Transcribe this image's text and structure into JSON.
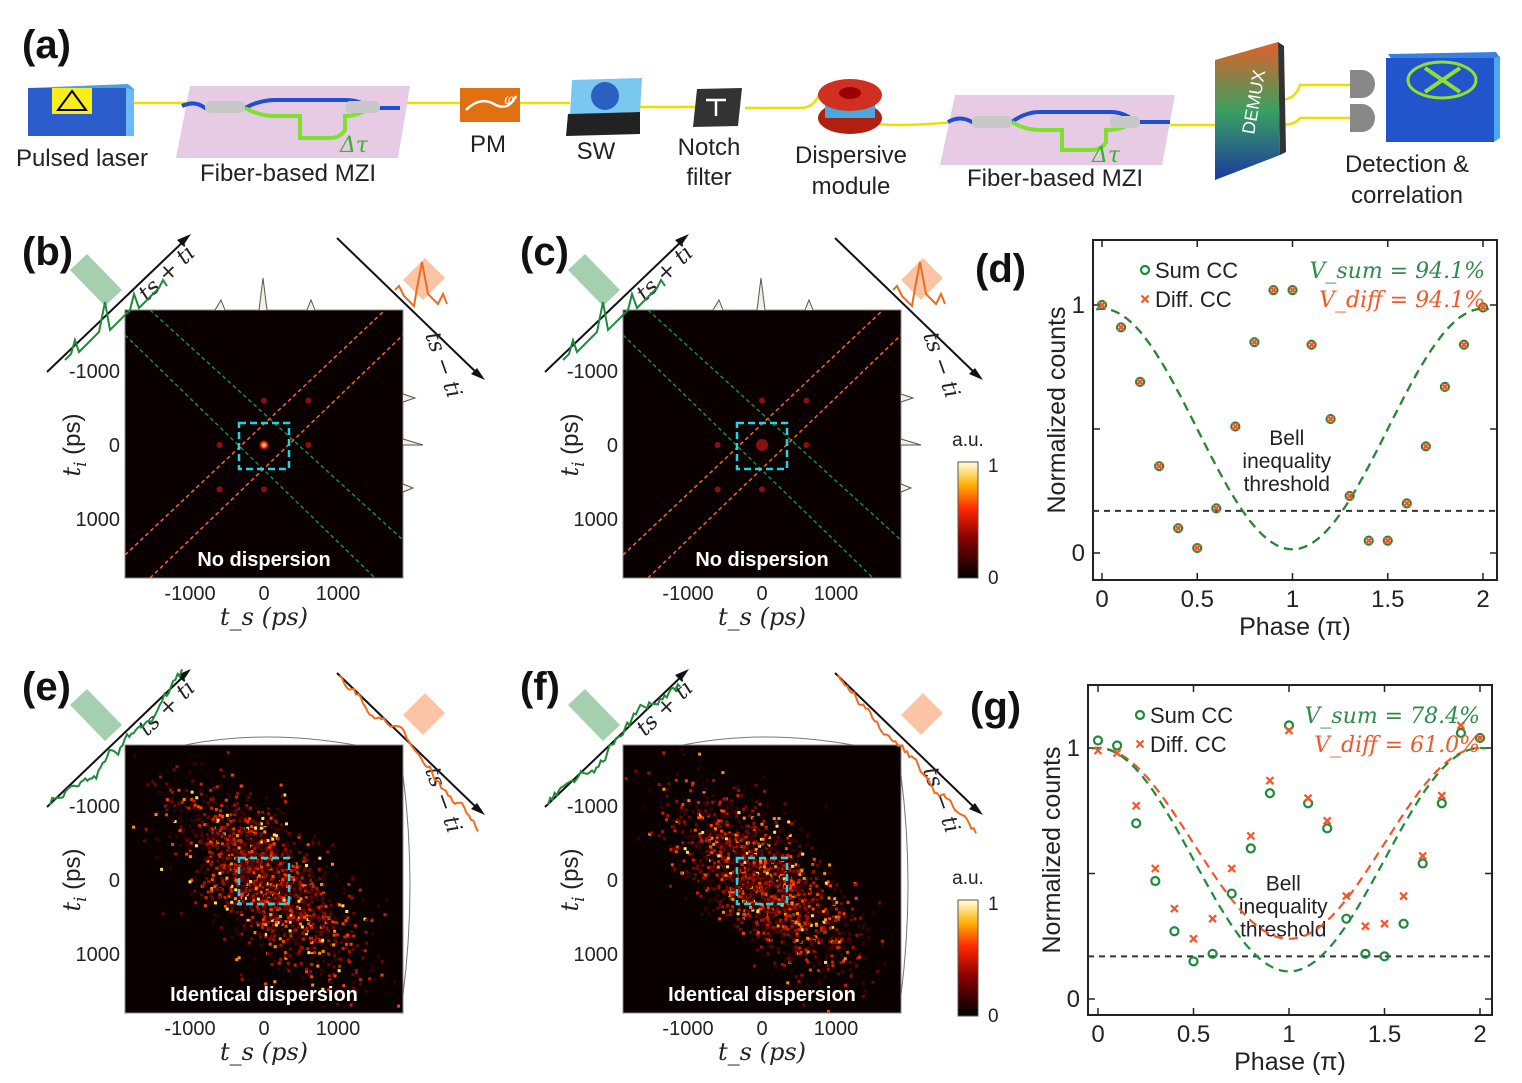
{
  "panel_labels": {
    "a": "(a)",
    "b": "(b)",
    "c": "(c)",
    "d": "(d)",
    "e": "(e)",
    "f": "(f)",
    "g": "(g)"
  },
  "schematic": {
    "pulsed_laser": "Pulsed laser",
    "mzi1": "Fiber-based MZI",
    "mzi1_delay": "Δτ",
    "pm": "PM",
    "pm_symbol": "φ",
    "sw": "SW",
    "notch_line1": "Notch",
    "notch_line2": "filter",
    "dispersive_line1": "Dispersive",
    "dispersive_line2": "module",
    "mzi2": "Fiber-based MZI",
    "mzi2_delay": "Δτ",
    "demux": "DEMUX",
    "detection_line1": "Detection &",
    "detection_line2": "correlation"
  },
  "heatmaps": {
    "xlabel": "t_s (ps)",
    "xlabel_sym": "t",
    "xlabel_sub": "s",
    "xlabel_unit": " (ps)",
    "ylabel_sym": "t",
    "ylabel_sub": "i",
    "ylabel_unit": " (ps)",
    "ticks": [
      "-1000",
      "0",
      "1000"
    ],
    "sum_axis": "ts + ti",
    "diff_axis": "ts − ti",
    "b_caption": "No dispersion",
    "c_caption": "No dispersion",
    "e_caption": "Identical dispersion",
    "f_caption": "Identical dispersion",
    "colorbar_title": "a.u.",
    "colorbar_max": "1",
    "colorbar_min": "0",
    "colors": {
      "sum": "#1e8a3a",
      "diff": "#f26b1d",
      "box": "#22d3e6"
    }
  },
  "chart_data": [
    {
      "type": "scatter",
      "panel": "(d)",
      "xlabel": "Phase (π)",
      "ylabel": "Normalized counts",
      "xlim": [
        -0.05,
        2.05
      ],
      "ylim": [
        -0.1,
        1.25
      ],
      "xticks": [
        "0",
        "0.5",
        "1",
        "1.5",
        "2"
      ],
      "yticks": [
        "0",
        "1"
      ],
      "legend": "top-left",
      "threshold": {
        "label_lines": [
          "Bell",
          "inequality",
          "threshold"
        ],
        "value": 0.17
      },
      "annotations": [
        {
          "text": "V_sum = 94.1%",
          "sym": "V",
          "sub": "sum",
          "val": " = 94.1%",
          "color": "#2e8b4a"
        },
        {
          "text": "V_diff = 94.1%",
          "sym": "V",
          "sub": "diff",
          "val": " = 94.1%",
          "color": "#f0582a"
        }
      ],
      "x": [
        0,
        0.1,
        0.2,
        0.3,
        0.4,
        0.5,
        0.6,
        0.7,
        0.8,
        0.9,
        1.0,
        1.1,
        1.2,
        1.3,
        1.4,
        1.5,
        1.6,
        1.7,
        1.8,
        1.9,
        2.0
      ],
      "series": [
        {
          "name": "Sum CC",
          "marker": "circle",
          "color": "#1e8a3a",
          "values": [
            1.0,
            0.91,
            0.69,
            0.35,
            0.1,
            0.02,
            0.18,
            0.51,
            0.85,
            1.06,
            1.06,
            0.84,
            0.54,
            0.23,
            0.05,
            0.05,
            0.2,
            0.43,
            0.67,
            0.84,
            0.99
          ],
          "fit": {
            "offset": 0.5,
            "amplitude": 0.485
          }
        },
        {
          "name": "Diff. CC",
          "marker": "x",
          "color": "#f0582a",
          "values": [
            1.0,
            0.91,
            0.69,
            0.35,
            0.1,
            0.02,
            0.18,
            0.51,
            0.85,
            1.06,
            1.06,
            0.84,
            0.54,
            0.23,
            0.05,
            0.05,
            0.2,
            0.43,
            0.67,
            0.84,
            0.99
          ],
          "fit": {
            "offset": 0.5,
            "amplitude": 0.485
          }
        }
      ]
    },
    {
      "type": "scatter",
      "panel": "(g)",
      "xlabel": "Phase (π)",
      "ylabel": "Normalized counts",
      "xlim": [
        -0.05,
        2.05
      ],
      "ylim": [
        -0.07,
        1.25
      ],
      "xticks": [
        "0",
        "0.5",
        "1",
        "1.5",
        "2"
      ],
      "yticks": [
        "0",
        "1"
      ],
      "legend": "top-left",
      "threshold": {
        "label_lines": [
          "Bell",
          "inequality",
          "threshold"
        ],
        "value": 0.17
      },
      "annotations": [
        {
          "text": "V_sum = 78.4%",
          "sym": "V",
          "sub": "sum",
          "val": " = 78.4%",
          "color": "#2e8b4a"
        },
        {
          "text": "V_diff = 61.0%",
          "sym": "V",
          "sub": "diff",
          "val": " = 61.0%",
          "color": "#f0582a"
        }
      ],
      "x": [
        0,
        0.1,
        0.2,
        0.3,
        0.4,
        0.5,
        0.6,
        0.7,
        0.8,
        0.9,
        1.0,
        1.1,
        1.2,
        1.3,
        1.4,
        1.5,
        1.6,
        1.7,
        1.8,
        1.9,
        2.0
      ],
      "series": [
        {
          "name": "Sum CC",
          "marker": "circle",
          "color": "#1e8a3a",
          "values": [
            1.03,
            1.01,
            0.7,
            0.47,
            0.27,
            0.15,
            0.18,
            0.42,
            0.6,
            0.82,
            1.09,
            0.78,
            0.68,
            0.32,
            0.18,
            0.17,
            0.3,
            0.54,
            0.78,
            1.06,
            1.04
          ],
          "fit": {
            "offset": 0.555,
            "amplitude": 0.445
          }
        },
        {
          "name": "Diff. CC",
          "marker": "x",
          "color": "#f0582a",
          "values": [
            0.99,
            0.98,
            0.77,
            0.52,
            0.36,
            0.24,
            0.32,
            0.52,
            0.65,
            0.87,
            1.07,
            0.8,
            0.71,
            0.41,
            0.29,
            0.3,
            0.41,
            0.57,
            0.81,
            1.09,
            1.04
          ],
          "fit": {
            "offset": 0.62,
            "amplitude": 0.38
          }
        }
      ]
    }
  ]
}
